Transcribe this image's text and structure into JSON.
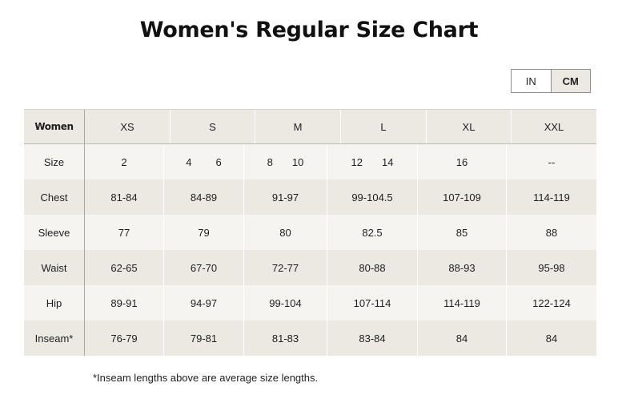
{
  "page": {
    "title": "Women's Regular Size Chart"
  },
  "units": {
    "in": "IN",
    "cm": "CM",
    "active": "CM"
  },
  "table": {
    "corner_label": "Women",
    "columns": [
      "XS",
      "S",
      "M",
      "L",
      "XL",
      "XXL"
    ],
    "rows": [
      {
        "label": "Size",
        "cells": [
          [
            "2"
          ],
          [
            "4",
            "6"
          ],
          [
            "8",
            "10"
          ],
          [
            "12",
            "14"
          ],
          [
            "16"
          ],
          [
            "--"
          ]
        ]
      },
      {
        "label": "Chest",
        "cells": [
          [
            "81-84"
          ],
          [
            "84-89"
          ],
          [
            "91-97"
          ],
          [
            "99-104.5"
          ],
          [
            "107-109"
          ],
          [
            "114-119"
          ]
        ]
      },
      {
        "label": "Sleeve",
        "cells": [
          [
            "77"
          ],
          [
            "79"
          ],
          [
            "80"
          ],
          [
            "82.5"
          ],
          [
            "85"
          ],
          [
            "88"
          ]
        ]
      },
      {
        "label": "Waist",
        "cells": [
          [
            "62-65"
          ],
          [
            "67-70"
          ],
          [
            "72-77"
          ],
          [
            "80-88"
          ],
          [
            "88-93"
          ],
          [
            "95-98"
          ]
        ]
      },
      {
        "label": "Hip",
        "cells": [
          [
            "89-91"
          ],
          [
            "94-97"
          ],
          [
            "99-104"
          ],
          [
            "107-114"
          ],
          [
            "114-119"
          ],
          [
            "122-124"
          ]
        ]
      },
      {
        "label": "Inseam*",
        "cells": [
          [
            "76-79"
          ],
          [
            "79-81"
          ],
          [
            "81-83"
          ],
          [
            "83-84"
          ],
          [
            "84"
          ],
          [
            "84"
          ]
        ]
      }
    ]
  },
  "footnote": "*Inseam lengths above are average size lengths."
}
